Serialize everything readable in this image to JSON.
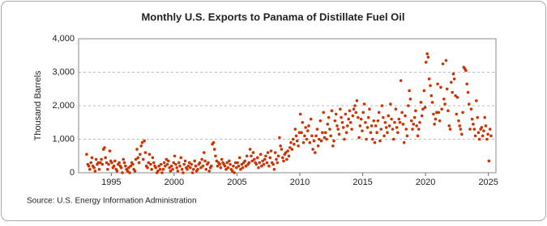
{
  "chart_data": {
    "type": "scatter",
    "title": "Monthly U.S. Exports to Panama of Distillate Fuel Oil",
    "y_label": "Thousand Barrels",
    "source": "Source: U.S. Energy Information Administration",
    "color": "#cc3300",
    "grid": true,
    "xlim": [
      1992.4,
      2025.6
    ],
    "xticks": [
      1995,
      2000,
      2005,
      2010,
      2015,
      2020,
      2025
    ],
    "ylim": [
      0,
      4000
    ],
    "yticks": [
      0,
      {
        "value": 1000,
        "label": "1,000"
      },
      {
        "value": 2000,
        "label": "2,000"
      },
      {
        "value": 3000,
        "label": "3,000"
      },
      {
        "value": 4000,
        "label": "4,000"
      }
    ],
    "x": [
      1993.04,
      1993.13,
      1993.21,
      1993.29,
      1993.38,
      1993.46,
      1993.54,
      1993.63,
      1993.71,
      1993.79,
      1993.88,
      1993.96,
      1994.04,
      1994.13,
      1994.21,
      1994.29,
      1994.38,
      1994.46,
      1994.54,
      1994.63,
      1994.71,
      1994.79,
      1994.88,
      1994.96,
      1995.04,
      1995.13,
      1995.21,
      1995.29,
      1995.38,
      1995.46,
      1995.54,
      1995.63,
      1995.71,
      1995.79,
      1995.88,
      1995.96,
      1996.04,
      1996.13,
      1996.21,
      1996.29,
      1996.38,
      1996.46,
      1996.54,
      1996.63,
      1996.71,
      1996.79,
      1996.88,
      1996.96,
      1997.04,
      1997.13,
      1997.21,
      1997.29,
      1997.38,
      1997.46,
      1997.54,
      1997.63,
      1997.71,
      1997.79,
      1997.88,
      1997.96,
      1998.04,
      1998.13,
      1998.21,
      1998.29,
      1998.38,
      1998.46,
      1998.54,
      1998.63,
      1998.71,
      1998.79,
      1998.88,
      1998.96,
      1999.04,
      1999.13,
      1999.21,
      1999.29,
      1999.38,
      1999.46,
      1999.54,
      1999.63,
      1999.71,
      1999.79,
      1999.88,
      1999.96,
      2000.04,
      2000.13,
      2000.21,
      2000.29,
      2000.38,
      2000.46,
      2000.54,
      2000.63,
      2000.71,
      2000.79,
      2000.88,
      2000.96,
      2001.04,
      2001.13,
      2001.21,
      2001.29,
      2001.38,
      2001.46,
      2001.54,
      2001.63,
      2001.71,
      2001.79,
      2001.88,
      2001.96,
      2002.04,
      2002.13,
      2002.21,
      2002.29,
      2002.38,
      2002.46,
      2002.54,
      2002.63,
      2002.71,
      2002.79,
      2002.88,
      2002.96,
      2003.04,
      2003.13,
      2003.21,
      2003.29,
      2003.38,
      2003.46,
      2003.54,
      2003.63,
      2003.71,
      2003.79,
      2003.88,
      2003.96,
      2004.04,
      2004.13,
      2004.21,
      2004.29,
      2004.38,
      2004.46,
      2004.54,
      2004.63,
      2004.71,
      2004.79,
      2004.88,
      2004.96,
      2005.04,
      2005.13,
      2005.21,
      2005.29,
      2005.38,
      2005.46,
      2005.54,
      2005.63,
      2005.71,
      2005.79,
      2005.88,
      2005.96,
      2006.04,
      2006.13,
      2006.21,
      2006.29,
      2006.38,
      2006.46,
      2006.54,
      2006.63,
      2006.71,
      2006.79,
      2006.88,
      2006.96,
      2007.04,
      2007.13,
      2007.21,
      2007.29,
      2007.38,
      2007.46,
      2007.54,
      2007.63,
      2007.71,
      2007.79,
      2007.88,
      2007.96,
      2008.04,
      2008.13,
      2008.21,
      2008.29,
      2008.38,
      2008.46,
      2008.54,
      2008.63,
      2008.71,
      2008.79,
      2008.88,
      2008.96,
      2009.04,
      2009.13,
      2009.21,
      2009.29,
      2009.38,
      2009.46,
      2009.54,
      2009.63,
      2009.71,
      2009.79,
      2009.88,
      2009.96,
      2010.04,
      2010.13,
      2010.21,
      2010.29,
      2010.38,
      2010.46,
      2010.54,
      2010.63,
      2010.71,
      2010.79,
      2010.88,
      2010.96,
      2011.04,
      2011.13,
      2011.21,
      2011.29,
      2011.38,
      2011.46,
      2011.54,
      2011.63,
      2011.71,
      2011.79,
      2011.88,
      2011.96,
      2012.04,
      2012.13,
      2012.21,
      2012.29,
      2012.38,
      2012.46,
      2012.54,
      2012.63,
      2012.71,
      2012.79,
      2012.88,
      2012.96,
      2013.04,
      2013.13,
      2013.21,
      2013.29,
      2013.38,
      2013.46,
      2013.54,
      2013.63,
      2013.71,
      2013.79,
      2013.88,
      2013.96,
      2014.04,
      2014.13,
      2014.21,
      2014.29,
      2014.38,
      2014.46,
      2014.54,
      2014.63,
      2014.71,
      2014.79,
      2014.88,
      2014.96,
      2015.04,
      2015.13,
      2015.21,
      2015.29,
      2015.38,
      2015.46,
      2015.54,
      2015.63,
      2015.71,
      2015.79,
      2015.88,
      2015.96,
      2016.04,
      2016.13,
      2016.21,
      2016.29,
      2016.38,
      2016.46,
      2016.54,
      2016.63,
      2016.71,
      2016.79,
      2016.88,
      2016.96,
      2017.04,
      2017.13,
      2017.21,
      2017.29,
      2017.38,
      2017.46,
      2017.54,
      2017.63,
      2017.71,
      2017.79,
      2017.88,
      2017.96,
      2018.04,
      2018.13,
      2018.21,
      2018.29,
      2018.38,
      2018.46,
      2018.54,
      2018.63,
      2018.71,
      2018.79,
      2018.88,
      2018.96,
      2019.04,
      2019.13,
      2019.21,
      2019.29,
      2019.38,
      2019.46,
      2019.54,
      2019.63,
      2019.71,
      2019.79,
      2019.88,
      2019.96,
      2020.04,
      2020.13,
      2020.21,
      2020.29,
      2020.38,
      2020.46,
      2020.54,
      2020.63,
      2020.71,
      2020.79,
      2020.88,
      2020.96,
      2021.04,
      2021.13,
      2021.21,
      2021.29,
      2021.38,
      2021.46,
      2021.54,
      2021.63,
      2021.71,
      2021.79,
      2021.88,
      2021.96,
      2022.04,
      2022.13,
      2022.21,
      2022.29,
      2022.38,
      2022.46,
      2022.54,
      2022.63,
      2022.71,
      2022.79,
      2022.88,
      2022.96,
      2023.04,
      2023.13,
      2023.21,
      2023.29,
      2023.38,
      2023.46,
      2023.54,
      2023.63,
      2023.71,
      2023.79,
      2023.88,
      2023.96,
      2024.04,
      2024.13,
      2024.21,
      2024.29,
      2024.38,
      2024.46,
      2024.54,
      2024.63,
      2024.71,
      2024.79,
      2024.88,
      2024.96,
      2025.04,
      2025.13,
      2025.21
    ],
    "values": [
      550,
      250,
      200,
      100,
      300,
      450,
      200,
      150,
      50,
      400,
      250,
      300,
      100,
      300,
      400,
      250,
      700,
      750,
      450,
      300,
      100,
      250,
      650,
      350,
      300,
      150,
      200,
      350,
      100,
      50,
      250,
      300,
      200,
      150,
      0,
      400,
      300,
      200,
      100,
      50,
      150,
      0,
      200,
      300,
      250,
      100,
      50,
      400,
      700,
      450,
      300,
      550,
      800,
      900,
      400,
      950,
      600,
      200,
      150,
      300,
      550,
      250,
      100,
      450,
      300,
      200,
      150,
      0,
      50,
      200,
      100,
      250,
      0,
      100,
      300,
      200,
      400,
      250,
      350,
      150,
      50,
      200,
      100,
      300,
      500,
      250,
      150,
      50,
      300,
      200,
      450,
      100,
      0,
      250,
      350,
      150,
      100,
      200,
      300,
      150,
      250,
      0,
      100,
      350,
      200,
      50,
      100,
      250,
      300,
      150,
      400,
      200,
      600,
      350,
      100,
      250,
      300,
      50,
      150,
      200,
      850,
      900,
      700,
      500,
      350,
      200,
      300,
      250,
      150,
      400,
      300,
      250,
      200,
      100,
      300,
      150,
      350,
      250,
      100,
      50,
      200,
      0,
      300,
      150,
      300,
      200,
      450,
      100,
      250,
      150,
      300,
      350,
      200,
      500,
      250,
      300,
      700,
      500,
      350,
      600,
      400,
      300,
      250,
      450,
      150,
      300,
      550,
      200,
      350,
      250,
      400,
      500,
      300,
      600,
      200,
      450,
      650,
      300,
      250,
      100,
      600,
      400,
      300,
      500,
      1050,
      800,
      700,
      450,
      350,
      550,
      600,
      400,
      650,
      500,
      750,
      900,
      700,
      1000,
      850,
      1300,
      1100,
      950,
      800,
      1200,
      1750,
      1200,
      1500,
      900,
      1100,
      1350,
      1000,
      1250,
      1400,
      900,
      1600,
      1100,
      700,
      950,
      600,
      1100,
      1300,
      800,
      1000,
      1550,
      950,
      1200,
      1800,
      1050,
      1200,
      1000,
      1450,
      1650,
      1300,
      1100,
      1850,
      800,
      950,
      1550,
      1750,
      1400,
      1300,
      1150,
      1900,
      1650,
      1500,
      1350,
      1000,
      1750,
      1200,
      1400,
      1600,
      1850,
      1500,
      1300,
      1700,
      1900,
      2000,
      1800,
      2150,
      1650,
      1050,
      1400,
      1600,
      1250,
      1800,
      2050,
      1500,
      1000,
      1350,
      1650,
      1900,
      1200,
      1400,
      1000,
      1550,
      900,
      1400,
      1200,
      1550,
      1800,
      950,
      1300,
      2000,
      1650,
      1100,
      1500,
      1350,
      1200,
      1700,
      1400,
      2050,
      1600,
      1300,
      1000,
      1500,
      1900,
      1350,
      1200,
      1600,
      1500,
      2750,
      1800,
      1450,
      900,
      1700,
      1300,
      1100,
      2000,
      2450,
      2200,
      1550,
      1300,
      1450,
      1650,
      1850,
      1400,
      1100,
      1300,
      1500,
      2100,
      1700,
      1900,
      2450,
      1950,
      3300,
      3550,
      3450,
      2800,
      2600,
      2300,
      2100,
      1750,
      1450,
      1600,
      1800,
      2650,
      1800,
      1550,
      2550,
      1900,
      3250,
      2200,
      2050,
      3350,
      2500,
      1850,
      1400,
      1300,
      2700,
      2400,
      2950,
      2800,
      2300,
      1750,
      2250,
      1550,
      1400,
      1300,
      1150,
      1800,
      3150,
      3100,
      3050,
      2650,
      2400,
      2050,
      1300,
      1900,
      1600,
      1450,
      1300,
      1100,
      2150,
      1650,
      1200,
      1000,
      1300,
      1350,
      1100,
      1250,
      1650,
      1400,
      1000,
      1150,
      350,
      1300,
      1100
    ]
  }
}
